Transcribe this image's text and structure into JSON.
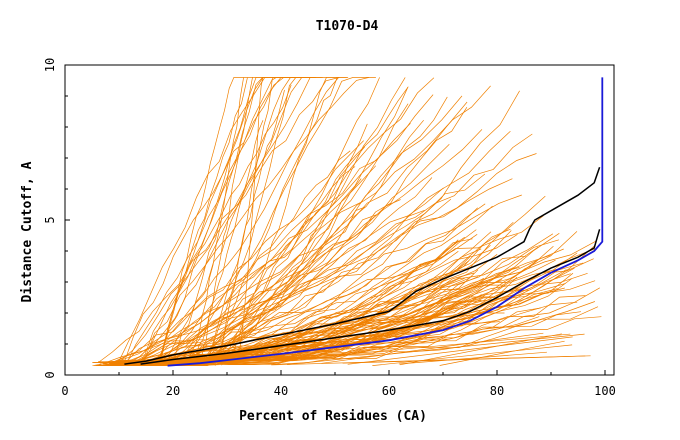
{
  "chart_data": {
    "type": "line",
    "title": "T1070-D4",
    "xlabel": "Percent of Residues (CA)",
    "ylabel": "Distance Cutoff, A",
    "xlim": [
      0,
      100
    ],
    "ylim": [
      0,
      10
    ],
    "x_ticks": [
      "0",
      "20",
      "40",
      "60",
      "80",
      "100"
    ],
    "y_ticks": [
      "0",
      "5",
      "10"
    ],
    "grid": false,
    "colors": {
      "background_models": "#f08000",
      "black_model": "#000000",
      "blue_model": "#1a1ad8",
      "axes": "#000000"
    },
    "series": [
      {
        "color": "#000000",
        "x": [
          11,
          15,
          20,
          30,
          40,
          50,
          60,
          62,
          65,
          70,
          75,
          80,
          83,
          85,
          86,
          87,
          90,
          95,
          98,
          99
        ],
        "y": [
          0.35,
          0.45,
          0.65,
          0.95,
          1.3,
          1.65,
          2.05,
          2.3,
          2.7,
          3.1,
          3.45,
          3.8,
          4.1,
          4.3,
          4.7,
          5.0,
          5.3,
          5.8,
          6.2,
          6.7
        ]
      },
      {
        "color": "#000000",
        "x": [
          14,
          20,
          30,
          40,
          50,
          60,
          70,
          75,
          80,
          85,
          90,
          95,
          98,
          99
        ],
        "y": [
          0.35,
          0.5,
          0.7,
          0.95,
          1.2,
          1.45,
          1.75,
          2.05,
          2.5,
          3.0,
          3.45,
          3.8,
          4.1,
          4.7
        ]
      },
      {
        "color": "#1a1ad8",
        "x": [
          19,
          25,
          30,
          40,
          50,
          60,
          70,
          75,
          80,
          85,
          90,
          95,
          98,
          99.5,
          99.5
        ],
        "y": [
          0.3,
          0.38,
          0.48,
          0.68,
          0.9,
          1.12,
          1.45,
          1.75,
          2.2,
          2.8,
          3.3,
          3.7,
          4.0,
          4.3,
          9.6
        ]
      }
    ],
    "background_models_count": 150
  }
}
